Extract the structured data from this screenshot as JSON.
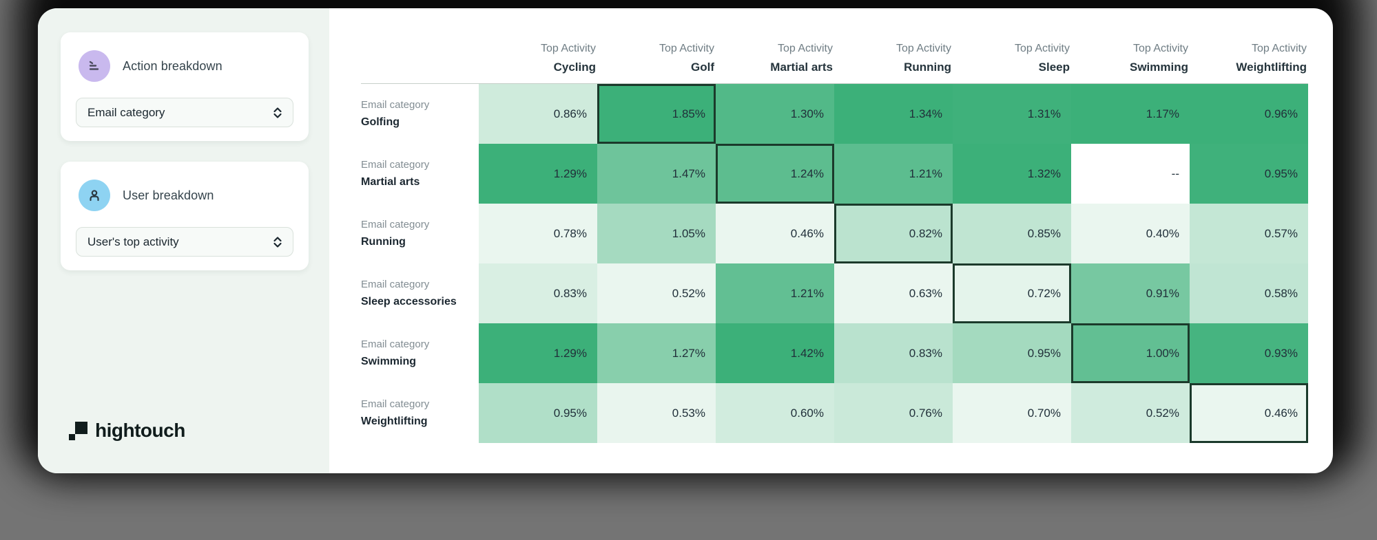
{
  "sidebar": {
    "action_breakdown": {
      "title": "Action breakdown",
      "dropdown_value": "Email category"
    },
    "user_breakdown": {
      "title": "User breakdown",
      "dropdown_value": "User's top activity"
    },
    "logo_text": "hightouch"
  },
  "colors": {
    "action_icon_bg": "#c9b9ee",
    "user_icon_bg": "#8ed3f2",
    "heat_min": "#eaf6ef",
    "heat_max": "#3cb079",
    "null_cell": "#ffffff",
    "highlight_border": "#1b3a2b",
    "sidebar_bg": "#eef4f0"
  },
  "chart_data": {
    "type": "heatmap",
    "title": "",
    "column_header_prefix": "Top Activity",
    "row_header_prefix": "Email category",
    "columns": [
      "Cycling",
      "Golf",
      "Martial arts",
      "Running",
      "Sleep",
      "Swimming",
      "Weightlifting"
    ],
    "rows": [
      "Golfing",
      "Martial arts",
      "Running",
      "Sleep accessories",
      "Swimming",
      "Weightlifting"
    ],
    "values": [
      [
        0.86,
        1.85,
        1.3,
        1.34,
        1.31,
        1.17,
        0.96
      ],
      [
        1.29,
        1.47,
        1.24,
        1.21,
        1.32,
        null,
        0.95
      ],
      [
        0.78,
        1.05,
        0.46,
        0.82,
        0.85,
        0.4,
        0.57
      ],
      [
        0.83,
        0.52,
        1.21,
        0.63,
        0.72,
        0.91,
        0.58
      ],
      [
        1.29,
        1.27,
        1.42,
        0.83,
        0.95,
        1.0,
        0.93
      ],
      [
        0.95,
        0.53,
        0.6,
        0.76,
        0.7,
        0.52,
        0.46
      ]
    ],
    "value_format": "percent_2dp",
    "null_display": "--",
    "highlighted_cells": [
      [
        0,
        1
      ],
      [
        1,
        2
      ],
      [
        2,
        3
      ],
      [
        3,
        4
      ],
      [
        4,
        5
      ],
      [
        5,
        6
      ]
    ],
    "color_scale": {
      "normalization": "per-column",
      "min_color": "#eaf6ef",
      "max_color": "#3cb079"
    },
    "legend": "none",
    "grid": "off"
  }
}
